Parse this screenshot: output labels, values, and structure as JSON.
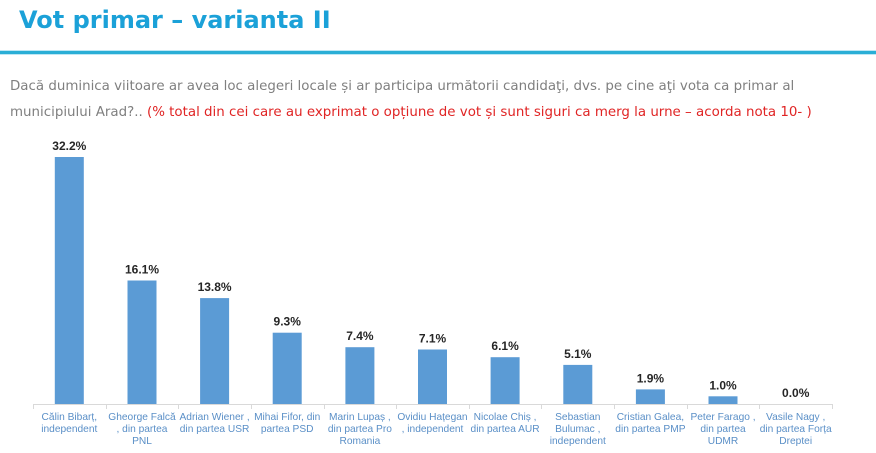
{
  "header": {
    "title": "Vot primar – varianta II"
  },
  "question": {
    "text": "Dacă duminica viitoare ar avea loc alegeri locale și ar participa următorii candidaţi, dvs. pe cine aţi vota ca primar al municipiului Arad?.. ",
    "note": "(% total din cei care au exprimat o opțiune de vot și sunt siguri ca merg la urne – acorda nota 10- )"
  },
  "colors": {
    "title": "#1ba1d8",
    "rule": "#2aaed6",
    "bar": "#5b9bd5",
    "question_text": "#7f7f7f",
    "note_text": "#e02424",
    "category_label": "#5a8fc7"
  },
  "chart_data": {
    "type": "bar",
    "title": "",
    "xlabel": "",
    "ylabel": "",
    "ylim": [
      0,
      32.2
    ],
    "grid": false,
    "legend": "none",
    "categories": [
      "Călin Bibarț, independent",
      "Gheorge Falcă , din partea PNL",
      "Adrian Wiener , din partea USR",
      "Mihai Fifor, din partea PSD",
      "Marin Lupaș , din partea Pro Romania",
      "Ovidiu Hațegan , independent",
      "Nicolae Chiș , din partea AUR",
      "Sebastian Bulumac , independent",
      "Cristian Galea, din partea PMP",
      "Peter Farago , din partea UDMR",
      "Vasile Nagy , din partea Forța Dreptei"
    ],
    "values": [
      32.2,
      16.1,
      13.8,
      9.3,
      7.4,
      7.1,
      6.1,
      5.1,
      1.9,
      1.0,
      0.0
    ],
    "value_labels": [
      "32.2%",
      "16.1%",
      "13.8%",
      "9.3%",
      "7.4%",
      "7.1%",
      "6.1%",
      "5.1%",
      "1.9%",
      "1.0%",
      "0.0%"
    ],
    "unit": "%"
  }
}
